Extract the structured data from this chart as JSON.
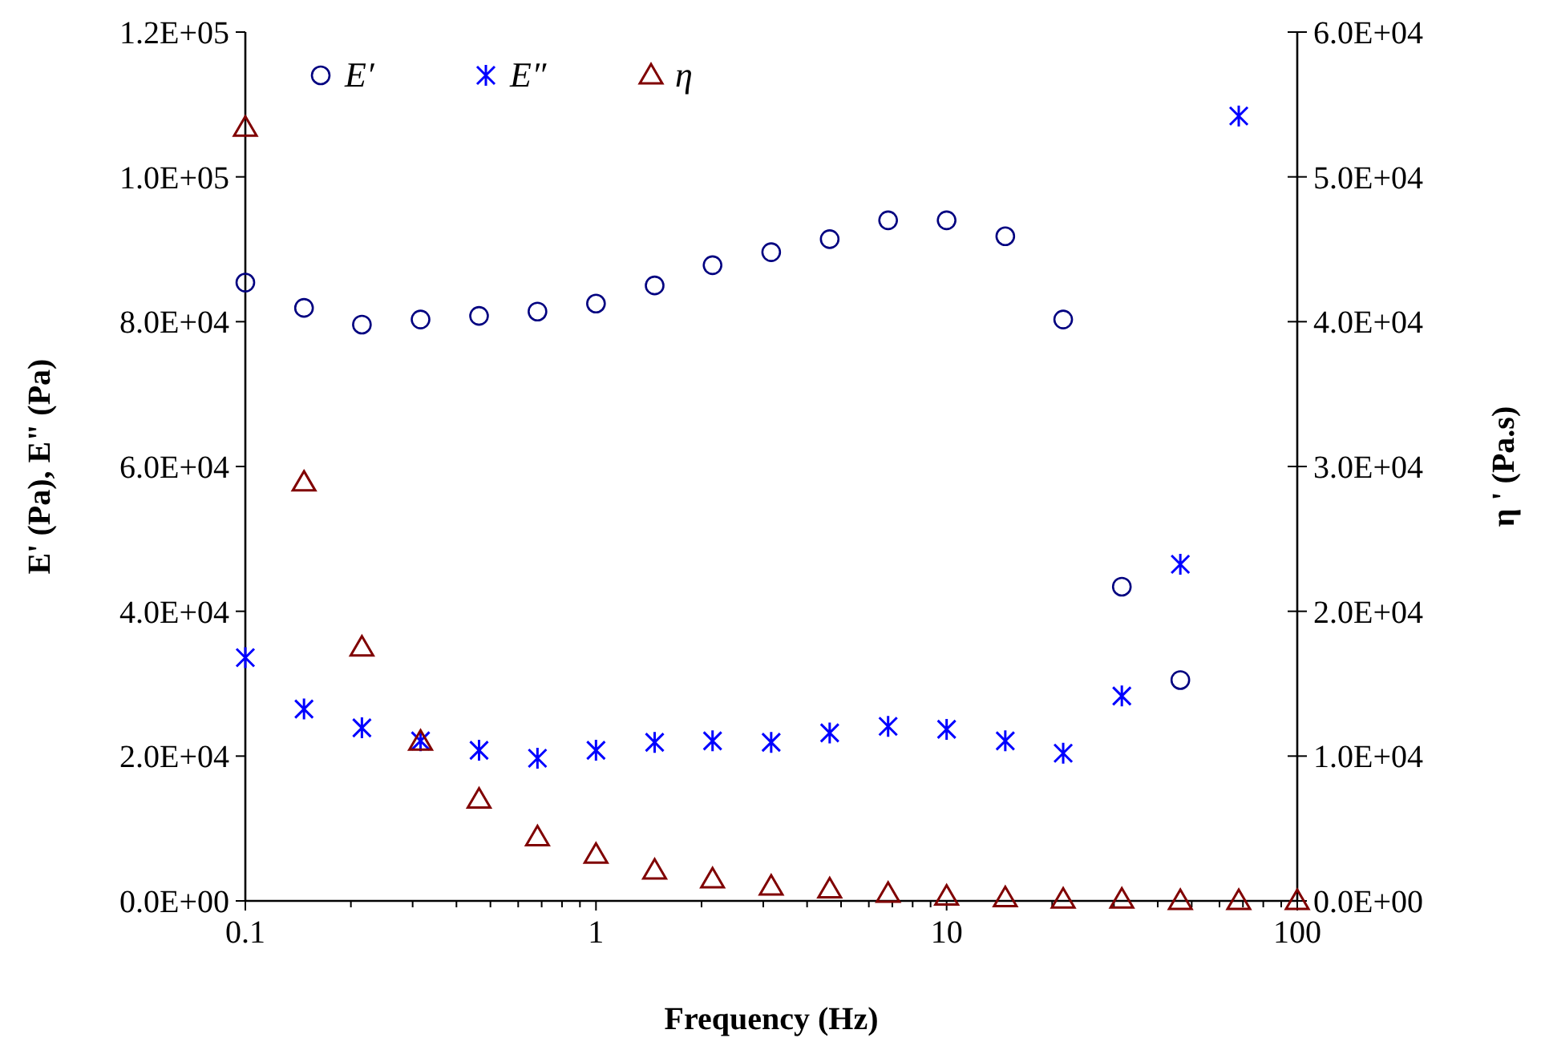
{
  "chart_data": {
    "type": "scatter",
    "xlabel": "Frequency (Hz)",
    "ylabel": "E' (Pa), E\" (Pa)",
    "y2label": "η ' (Pa.s)",
    "log": "x",
    "grid": false,
    "legend": "top left",
    "x": [
      0.1,
      0.147,
      0.215,
      0.316,
      0.464,
      0.681,
      1,
      1.47,
      2.15,
      3.16,
      4.64,
      6.81,
      10,
      14.7,
      21.5,
      31.6,
      46.4,
      68.1,
      100
    ],
    "xlim": [
      0.1,
      100
    ],
    "xticks": [
      0.1,
      {
        "value": 0.2,
        "label": null
      },
      {
        "value": 0.3,
        "label": null
      },
      {
        "value": 0.4,
        "label": null
      },
      {
        "value": 0.5,
        "label": null
      },
      {
        "value": 0.6,
        "label": null
      },
      {
        "value": 0.7,
        "label": null
      },
      {
        "value": 0.8,
        "label": null
      },
      {
        "value": 0.9,
        "label": null
      },
      1,
      {
        "value": 2,
        "label": null
      },
      {
        "value": 3,
        "label": null
      },
      {
        "value": 4,
        "label": null
      },
      {
        "value": 5,
        "label": null
      },
      {
        "value": 6,
        "label": null
      },
      {
        "value": 7,
        "label": null
      },
      {
        "value": 8,
        "label": null
      },
      {
        "value": 9,
        "label": null
      },
      10,
      {
        "value": 20,
        "label": null
      },
      {
        "value": 30,
        "label": null
      },
      {
        "value": 40,
        "label": null
      },
      {
        "value": 50,
        "label": null
      },
      {
        "value": 60,
        "label": null
      },
      {
        "value": 70,
        "label": null
      },
      {
        "value": 80,
        "label": null
      },
      {
        "value": 90,
        "label": null
      },
      100
    ],
    "ylim": [
      0,
      120000
    ],
    "yticks": [
      {
        "value": 0,
        "label": "0.0E+00"
      },
      {
        "value": 20000,
        "label": "2.0E+04"
      },
      {
        "value": 40000,
        "label": "4.0E+04"
      },
      {
        "value": 60000,
        "label": "6.0E+04"
      },
      {
        "value": 80000,
        "label": "8.0E+04"
      },
      {
        "value": 100000,
        "label": "1.0E+05"
      },
      {
        "value": 120000,
        "label": "1.2E+05"
      }
    ],
    "y2lim": [
      0,
      60000
    ],
    "y2ticks": [
      {
        "value": 0,
        "label": "0.0E+00"
      },
      {
        "value": 10000,
        "label": "1.0E+04"
      },
      {
        "value": 20000,
        "label": "2.0E+04"
      },
      {
        "value": 30000,
        "label": "3.0E+04"
      },
      {
        "value": 40000,
        "label": "4.0E+04"
      },
      {
        "value": 50000,
        "label": "5.0E+04"
      },
      {
        "value": 60000,
        "label": "6.0E+04"
      }
    ],
    "series": [
      {
        "name": "E′",
        "color": "#000080",
        "marker": "circle",
        "values": [
          85400,
          81900,
          79600,
          80300,
          80800,
          81400,
          82500,
          85000,
          87800,
          89600,
          91400,
          94000,
          94000,
          91800,
          80300,
          43400,
          30500,
          null,
          null
        ]
      },
      {
        "name": "E″",
        "color": "#0000ff",
        "marker": "cross",
        "values": [
          33600,
          26500,
          23900,
          22100,
          20800,
          19700,
          20800,
          21900,
          22100,
          21900,
          23200,
          24100,
          23700,
          22100,
          20400,
          28300,
          46500,
          108400,
          null
        ]
      },
      {
        "name": "η",
        "color": "#800000",
        "marker": "triangle",
        "axis": "y2",
        "values": [
          53400,
          28900,
          17500,
          11000,
          7000,
          4400,
          3200,
          2100,
          1500,
          1000,
          800,
          500,
          300,
          200,
          100,
          100,
          0,
          0,
          0
        ]
      }
    ]
  }
}
